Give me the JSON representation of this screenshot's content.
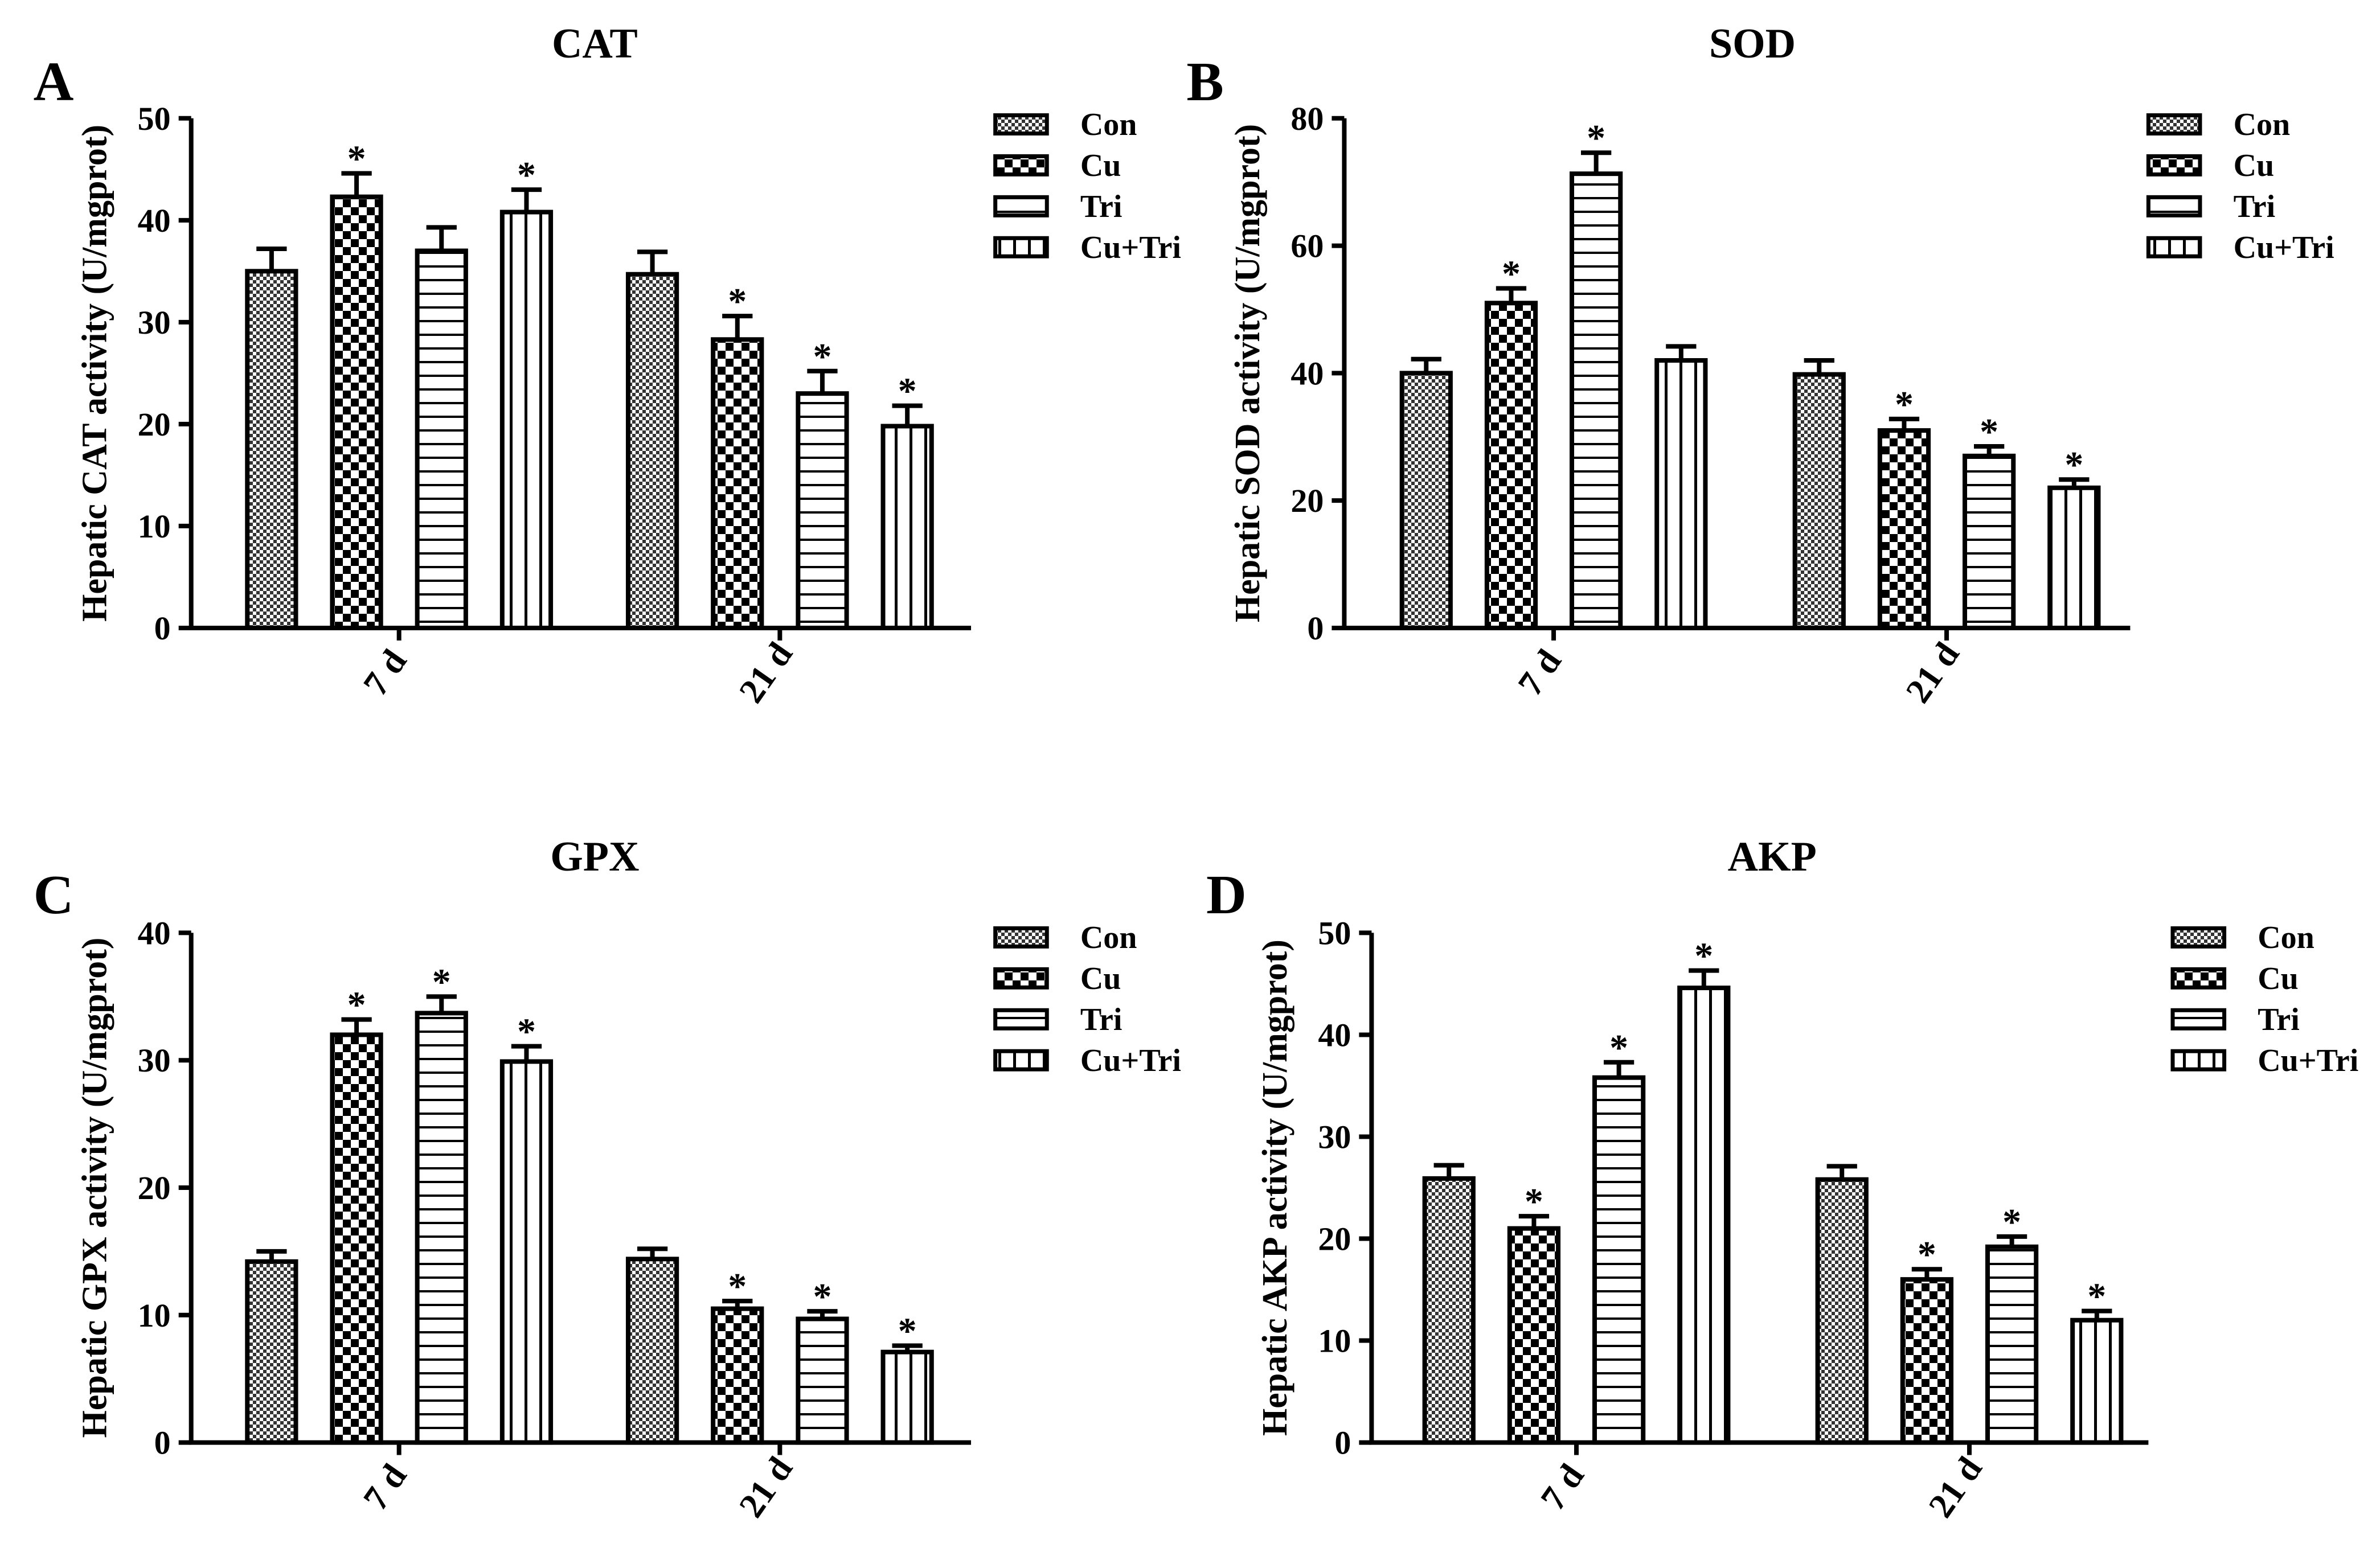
{
  "legend": [
    "Con",
    "Cu",
    "Tri",
    "Cu+Tri"
  ],
  "chart_data": [
    {
      "type": "bar",
      "panel_label": "A",
      "title": "CAT",
      "ylabel": "Hepatic CAT activity  (U/mgprot)",
      "categories": [
        "7 d",
        "21 d"
      ],
      "ylim": [
        0,
        50
      ],
      "yticks": [
        0,
        10,
        20,
        30,
        40,
        50
      ],
      "series": [
        {
          "name": "Con",
          "pattern": "fine-check",
          "values": [
            35,
            34.7
          ],
          "errors": [
            2.2,
            2.2
          ],
          "sig": [
            "",
            ""
          ]
        },
        {
          "name": "Cu",
          "pattern": "big-check",
          "values": [
            42.3,
            28.3
          ],
          "errors": [
            2.3,
            2.3
          ],
          "sig": [
            "*",
            "*"
          ]
        },
        {
          "name": "Tri",
          "pattern": "horizontal-lines",
          "values": [
            37,
            23
          ],
          "errors": [
            2.3,
            2.2
          ],
          "sig": [
            "",
            "*"
          ]
        },
        {
          "name": "Cu+Tri",
          "pattern": "vertical-lines",
          "values": [
            40.8,
            19.8
          ],
          "errors": [
            2.2,
            2.0
          ],
          "sig": [
            "*",
            "*"
          ]
        }
      ]
    },
    {
      "type": "bar",
      "panel_label": "B",
      "title": "SOD",
      "ylabel": "Hepatic SOD activity  (U/mgprot)",
      "categories": [
        "7 d",
        "21 d"
      ],
      "ylim": [
        0,
        80
      ],
      "yticks": [
        0,
        20,
        40,
        60,
        80
      ],
      "series": [
        {
          "name": "Con",
          "pattern": "fine-check",
          "values": [
            40,
            39.8
          ],
          "errors": [
            2.2,
            2.2
          ],
          "sig": [
            "",
            ""
          ]
        },
        {
          "name": "Cu",
          "pattern": "big-check",
          "values": [
            51,
            31
          ],
          "errors": [
            2.3,
            1.8
          ],
          "sig": [
            "*",
            "*"
          ]
        },
        {
          "name": "Tri",
          "pattern": "horizontal-lines",
          "values": [
            71.3,
            27
          ],
          "errors": [
            3.3,
            1.5
          ],
          "sig": [
            "*",
            "*"
          ]
        },
        {
          "name": "Cu+Tri",
          "pattern": "vertical-lines",
          "values": [
            42,
            22
          ],
          "errors": [
            2.2,
            1.3
          ],
          "sig": [
            "",
            "*"
          ]
        }
      ]
    },
    {
      "type": "bar",
      "panel_label": "C",
      "title": "GPX",
      "ylabel": "Hepatic GPX activity  (U/mgprot)",
      "categories": [
        "7 d",
        "21 d"
      ],
      "ylim": [
        0,
        40
      ],
      "yticks": [
        0,
        10,
        20,
        30,
        40
      ],
      "series": [
        {
          "name": "Con",
          "pattern": "fine-check",
          "values": [
            14.2,
            14.4
          ],
          "errors": [
            0.8,
            0.8
          ],
          "sig": [
            "",
            ""
          ]
        },
        {
          "name": "Cu",
          "pattern": "big-check",
          "values": [
            32,
            10.5
          ],
          "errors": [
            1.2,
            0.6
          ],
          "sig": [
            "*",
            "*"
          ]
        },
        {
          "name": "Tri",
          "pattern": "horizontal-lines",
          "values": [
            33.7,
            9.7
          ],
          "errors": [
            1.3,
            0.6
          ],
          "sig": [
            "*",
            "*"
          ]
        },
        {
          "name": "Cu+Tri",
          "pattern": "vertical-lines",
          "values": [
            29.9,
            7.1
          ],
          "errors": [
            1.2,
            0.5
          ],
          "sig": [
            "*",
            "*"
          ]
        }
      ]
    },
    {
      "type": "bar",
      "panel_label": "D",
      "title": "AKP",
      "ylabel": "Hepatic AKP activity  (U/mgprot)",
      "categories": [
        "7 d",
        "21 d"
      ],
      "ylim": [
        0,
        50
      ],
      "yticks": [
        0,
        10,
        20,
        30,
        40,
        50
      ],
      "series": [
        {
          "name": "Con",
          "pattern": "fine-check",
          "values": [
            25.9,
            25.8
          ],
          "errors": [
            1.3,
            1.3
          ],
          "sig": [
            "",
            ""
          ]
        },
        {
          "name": "Cu",
          "pattern": "big-check",
          "values": [
            21,
            16
          ],
          "errors": [
            1.2,
            1.0
          ],
          "sig": [
            "*",
            "*"
          ]
        },
        {
          "name": "Tri",
          "pattern": "horizontal-lines",
          "values": [
            35.8,
            19.2
          ],
          "errors": [
            1.5,
            1.0
          ],
          "sig": [
            "*",
            "*"
          ]
        },
        {
          "name": "Cu+Tri",
          "pattern": "vertical-lines",
          "values": [
            44.6,
            12
          ],
          "errors": [
            1.7,
            0.9
          ],
          "sig": [
            "*",
            "*"
          ]
        }
      ]
    }
  ]
}
